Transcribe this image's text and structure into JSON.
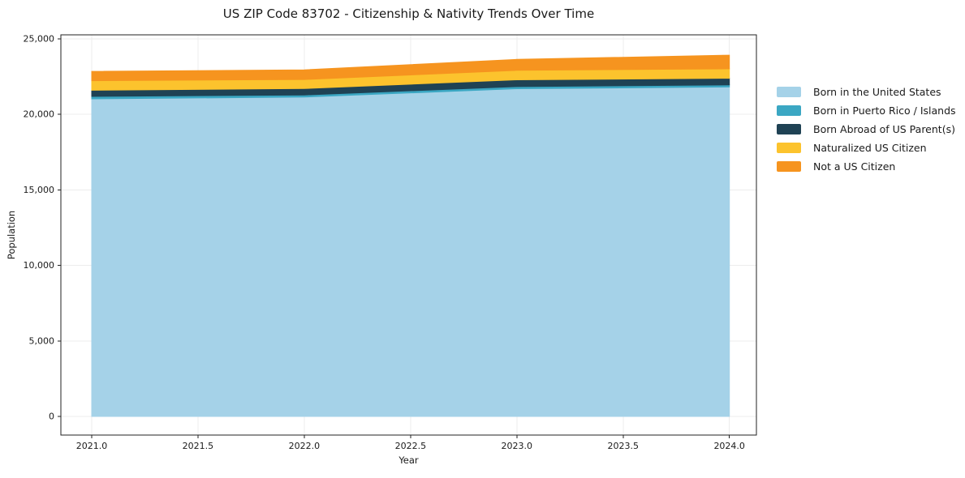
{
  "chart_data": {
    "type": "area",
    "stacked": true,
    "title": "US ZIP Code 83702 - Citizenship & Nativity Trends Over Time",
    "xlabel": "Year",
    "ylabel": "Population",
    "x": [
      2021,
      2022,
      2023,
      2024
    ],
    "series": [
      {
        "name": "Born in the United States",
        "color": "#A5D2E8",
        "values": [
          21030,
          21150,
          21700,
          21820
        ]
      },
      {
        "name": "Born in Puerto Rico / Islands",
        "color": "#3BA7C3",
        "values": [
          160,
          140,
          140,
          130
        ]
      },
      {
        "name": "Born Abroad of US Parent(s)",
        "color": "#1F4254",
        "values": [
          410,
          420,
          450,
          440
        ]
      },
      {
        "name": "Naturalized US Citizen",
        "color": "#FCC32D",
        "values": [
          630,
          600,
          630,
          630
        ]
      },
      {
        "name": "Not a US Citizen",
        "color": "#F6941F",
        "values": [
          620,
          640,
          720,
          900
        ]
      }
    ],
    "totals": [
      22850,
      22950,
      23640,
      23920
    ],
    "xlim": [
      2020.855,
      2024.127
    ],
    "ylim": [
      -1234,
      25268
    ],
    "xticks": {
      "values": [
        2021.0,
        2021.5,
        2022.0,
        2022.5,
        2023.0,
        2023.5,
        2024.0
      ],
      "labels": [
        "2021.0",
        "2021.5",
        "2022.0",
        "2022.5",
        "2023.0",
        "2023.5",
        "2024.0"
      ]
    },
    "yticks": {
      "values": [
        0,
        5000,
        10000,
        15000,
        20000,
        25000
      ],
      "labels": [
        "0",
        "5,000",
        "10,000",
        "15,000",
        "20,000",
        "25,000"
      ]
    },
    "grid": true,
    "legend_position": "right-outside",
    "colors": {
      "grid": "#ececec",
      "spine": "#222222",
      "tick_text": "#1a1a1a"
    }
  }
}
